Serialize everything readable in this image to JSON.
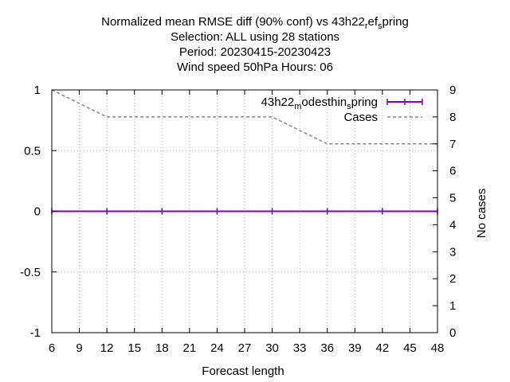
{
  "chart_data": {
    "type": "line",
    "title_lines": [
      {
        "parts": [
          {
            "text": "Normalized mean RMSE diff (90% conf) vs 43h22",
            "sub": false
          },
          {
            "text": "r",
            "sub": true
          },
          {
            "text": "ef",
            "sub": false
          },
          {
            "text": "s",
            "sub": true
          },
          {
            "text": "pring",
            "sub": false
          }
        ]
      },
      {
        "parts": [
          {
            "text": "Selection: ALL using    28 stations",
            "sub": false
          }
        ]
      },
      {
        "parts": [
          {
            "text": "Period: 20230415-20230423",
            "sub": false
          }
        ]
      },
      {
        "parts": [
          {
            "text": "Wind speed 50hPa   Hours:  06",
            "sub": false
          }
        ]
      }
    ],
    "xlabel": "Forecast length",
    "ylabel_right": "No cases",
    "x_ticks": [
      6,
      9,
      12,
      15,
      18,
      21,
      24,
      27,
      30,
      33,
      36,
      39,
      42,
      45,
      48
    ],
    "xlim": [
      6,
      48
    ],
    "y_left_ticks": [
      "1",
      "0.5",
      "0",
      "-0.5",
      "-1"
    ],
    "y_left_tick_values": [
      1,
      0.5,
      0,
      -0.5,
      -1
    ],
    "ylim_left": [
      -1,
      1
    ],
    "y_right_ticks": [
      9,
      8,
      7,
      6,
      5,
      4,
      3,
      2,
      1,
      0
    ],
    "ylim_right": [
      0,
      9
    ],
    "grid": true,
    "legend_position": "top-right",
    "series": [
      {
        "name_parts": [
          {
            "text": "43h22",
            "sub": false
          },
          {
            "text": "m",
            "sub": true
          },
          {
            "text": "odesthin",
            "sub": false
          },
          {
            "text": "s",
            "sub": true
          },
          {
            "text": "pring",
            "sub": false
          }
        ],
        "axis": "left",
        "color": "#7b00b3",
        "style": "solid-errorbars",
        "x": [
          6,
          12,
          18,
          24,
          30,
          36,
          42,
          48
        ],
        "values": [
          0,
          0,
          0,
          0,
          0,
          0,
          0,
          0
        ]
      },
      {
        "name": "Cases",
        "axis": "right",
        "color": "#888888",
        "style": "dashed",
        "x": [
          6,
          12,
          18,
          24,
          30,
          36,
          42,
          48
        ],
        "values": [
          9,
          8,
          8,
          8,
          8,
          7,
          7,
          7
        ]
      }
    ]
  }
}
